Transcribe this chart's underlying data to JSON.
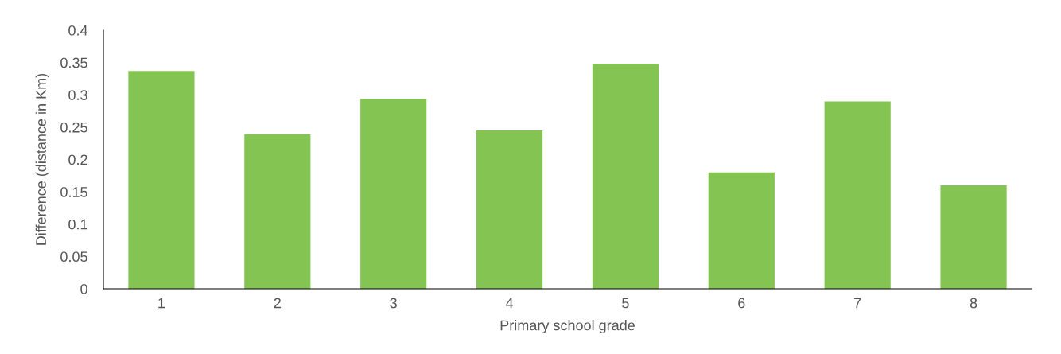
{
  "chart_data": {
    "type": "bar",
    "xlabel": "Primary school grade",
    "ylabel": "Difference (distance in Km)",
    "categories": [
      "1",
      "2",
      "3",
      "4",
      "5",
      "6",
      "7",
      "8"
    ],
    "values": [
      0.337,
      0.239,
      0.294,
      0.245,
      0.348,
      0.18,
      0.29,
      0.16
    ],
    "color": "#84c452",
    "ylim": [
      0,
      0.4
    ],
    "yticks": [
      {
        "value": 0,
        "label": "0"
      },
      0.05,
      0.1,
      0.15,
      0.2,
      0.25,
      0.3,
      0.35,
      0.4
    ],
    "grid": false,
    "legend": false
  }
}
